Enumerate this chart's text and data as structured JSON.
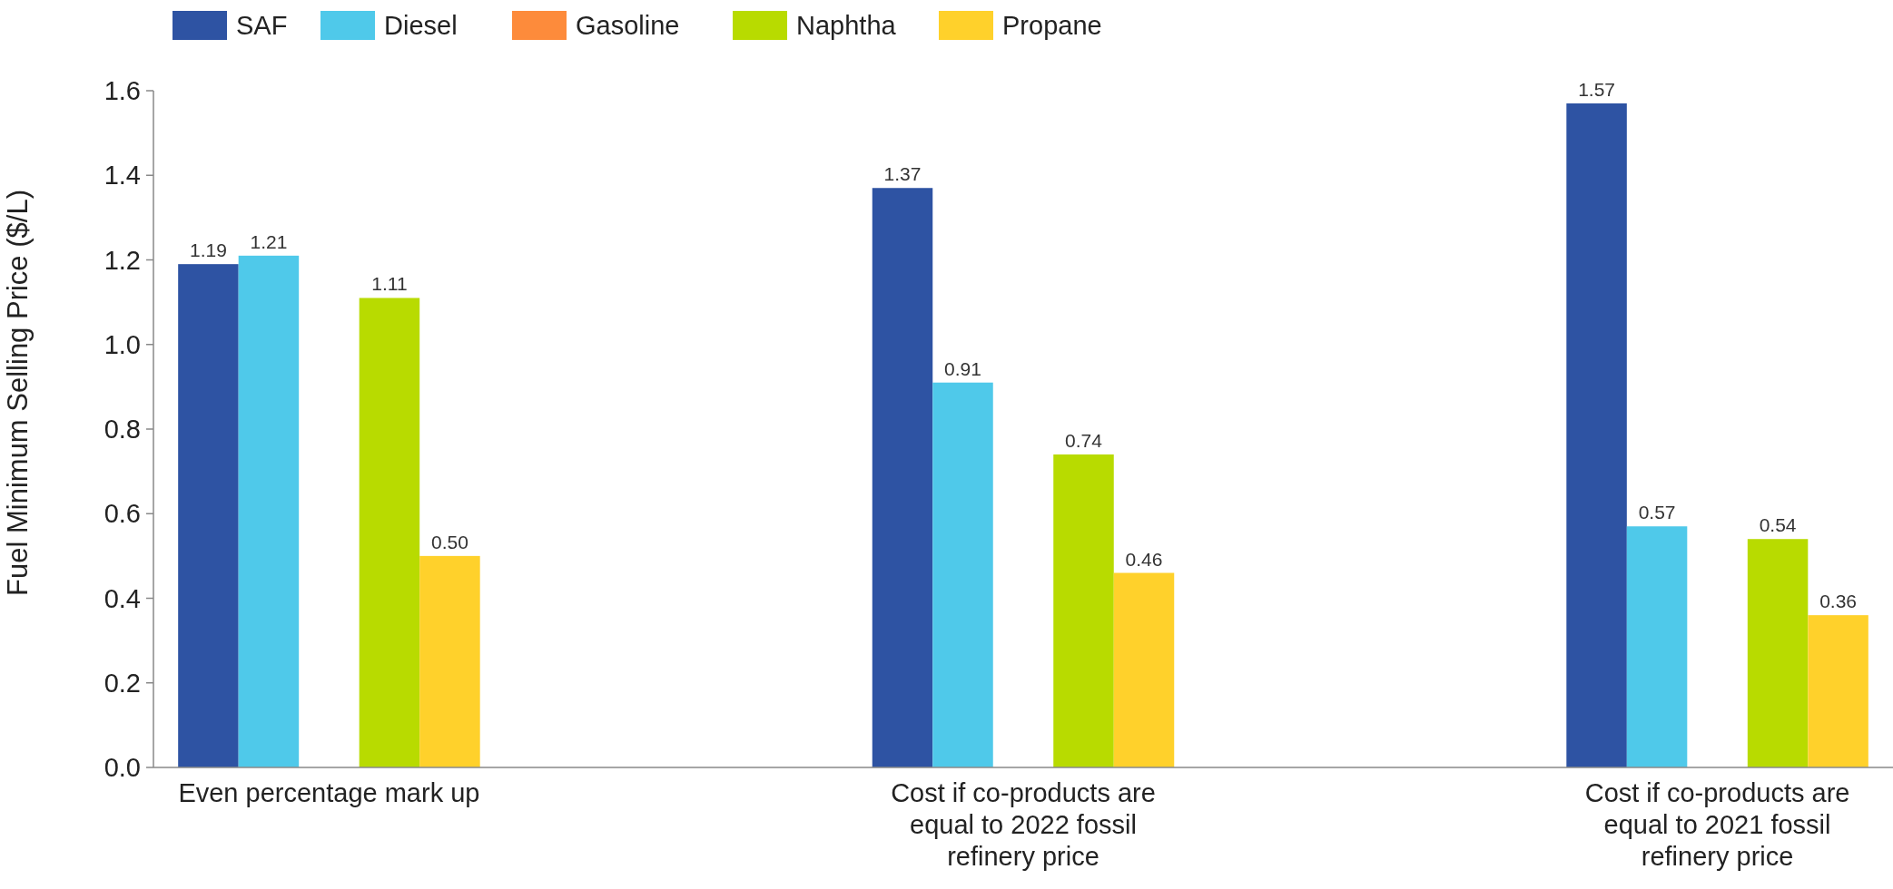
{
  "chart_data": {
    "type": "bar",
    "ylabel": "Fuel Minimum Selling Price ($/L)",
    "categories": [
      "Even percentage mark up",
      "Cost if co-products are equal to 2022 fossil refinery price",
      "Cost if co-products are equal to 2021 fossil refinery price"
    ],
    "series": [
      {
        "name": "SAF",
        "color": "#2e53a3",
        "values": [
          1.19,
          1.37,
          1.57
        ],
        "value_labels": [
          "1.19",
          "1.37",
          "1.57"
        ]
      },
      {
        "name": "Diesel",
        "color": "#4fc9ea",
        "values": [
          1.21,
          0.91,
          0.57
        ],
        "value_labels": [
          "1.21",
          "0.91",
          "0.57"
        ]
      },
      {
        "name": "Gasoline",
        "color": "#fd8b3b",
        "values": [
          null,
          null,
          null
        ]
      },
      {
        "name": "Naphtha",
        "color": "#b8db00",
        "values": [
          1.11,
          0.74,
          0.54
        ],
        "value_labels": [
          "1.11",
          "0.74",
          "0.54"
        ]
      },
      {
        "name": "Propane",
        "color": "#ffd12b",
        "values": [
          0.5,
          0.46,
          0.36
        ],
        "value_labels": [
          "0.50",
          "0.46",
          "0.36"
        ]
      }
    ],
    "ylim": [
      0,
      1.6
    ],
    "yticks": [
      {
        "value": 0,
        "label": "0.0"
      },
      {
        "value": 0.2,
        "label": "0.2"
      },
      {
        "value": 0.4,
        "label": "0.4"
      },
      {
        "value": 0.6,
        "label": "0.6"
      },
      {
        "value": 0.8,
        "label": "0.8"
      },
      {
        "value": 1,
        "label": "1.0"
      },
      {
        "value": 1.2,
        "label": "1.2"
      },
      {
        "value": 1.4,
        "label": "1.4"
      },
      {
        "value": 1.6,
        "label": "1.6"
      }
    ],
    "legend": "top left",
    "grid": false
  }
}
